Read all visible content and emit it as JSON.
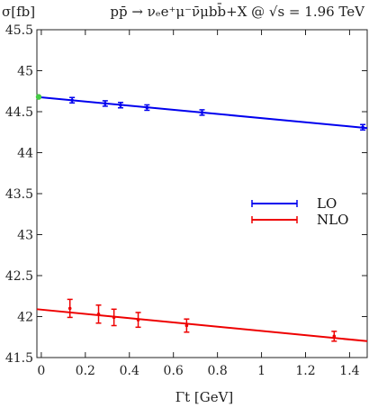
{
  "chart_data": {
    "type": "line",
    "title": "pp̄ → νₑe⁺μ⁻ν̄μbb̄+X @ √s = 1.96 TeV",
    "xlabel": "Γt [GeV]",
    "ylabel": "σ[fb]",
    "xlim": [
      -0.02,
      1.48
    ],
    "ylim": [
      41.5,
      45.5
    ],
    "x_ticks": [
      0,
      0.2,
      0.4,
      0.6,
      0.8,
      1,
      1.2,
      1.4
    ],
    "x_tick_labels": [
      "0",
      "0.2",
      "0.4",
      "0.6",
      "0.8",
      "1",
      "1.2",
      "1.4"
    ],
    "y_ticks": [
      41.5,
      42,
      42.5,
      43,
      43.5,
      44,
      44.5,
      45,
      45.5
    ],
    "y_tick_labels": [
      "41.5",
      "42",
      "42.5",
      "43",
      "43.5",
      "44",
      "44.5",
      "45",
      "45.5"
    ],
    "grid": false,
    "legend_position": "right",
    "series": [
      {
        "name": "LO",
        "color": "#0000ee",
        "fit": [
          [
            -0.02,
            44.68
          ],
          [
            1.48,
            44.3
          ]
        ],
        "points": [
          {
            "x": 0.14,
            "y": 44.64,
            "err": 0.0
          },
          {
            "x": 0.29,
            "y": 44.6,
            "err": 0.0
          },
          {
            "x": 0.36,
            "y": 44.58,
            "err": 0.0
          },
          {
            "x": 0.48,
            "y": 44.55,
            "err": 0.0
          },
          {
            "x": 0.73,
            "y": 44.49,
            "err": 0.0
          },
          {
            "x": 1.46,
            "y": 44.31,
            "err": 0.0
          }
        ]
      },
      {
        "name": "NLO",
        "color": "#ee0000",
        "fit": [
          [
            -0.02,
            42.09
          ],
          [
            1.48,
            41.7
          ]
        ],
        "points": [
          {
            "x": 0.13,
            "y": 42.1,
            "err": 0.11
          },
          {
            "x": 0.26,
            "y": 42.03,
            "err": 0.11
          },
          {
            "x": 0.33,
            "y": 41.99,
            "err": 0.1
          },
          {
            "x": 0.44,
            "y": 41.96,
            "err": 0.09
          },
          {
            "x": 0.66,
            "y": 41.89,
            "err": 0.08
          },
          {
            "x": 1.33,
            "y": 41.76,
            "err": 0.06
          }
        ]
      }
    ],
    "highlight_point": {
      "x": -0.02,
      "y": 44.68,
      "color": "#44cc44"
    }
  }
}
